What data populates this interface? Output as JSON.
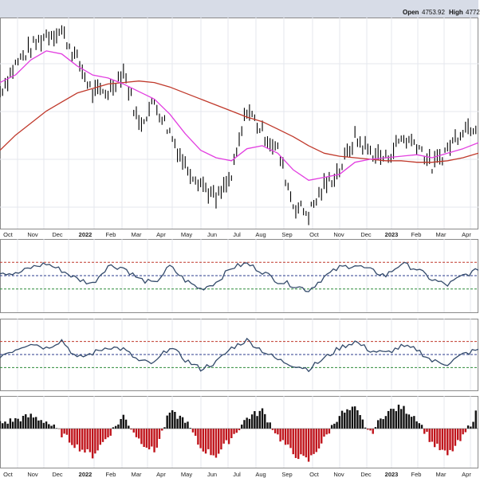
{
  "ohlc": {
    "open_label": "Open",
    "open_value": "4753.92",
    "high_label": "High",
    "high_value": "4772"
  },
  "colors": {
    "price_bars": "#000000",
    "sma_50": "#e23fe0",
    "sma_200": "#c0392b",
    "indicator_line": "#334a6b",
    "overbought_line": "#c0392b",
    "midline": "#2c3e8f",
    "oversold_line": "#2e8b3a",
    "hist_positive": "#111111",
    "hist_negative": "#c0141b",
    "panel_bg": "#ffffff",
    "header_bg": "#d7dce7"
  },
  "chart_data": [
    {
      "type": "line",
      "title": "",
      "x_tick_labels": [
        "Oct",
        "Nov",
        "Dec",
        "2022",
        "Feb",
        "Mar",
        "Apr",
        "May",
        "Jun",
        "Jul",
        "Aug",
        "Sep",
        "Oct",
        "Nov",
        "Dec",
        "2023",
        "Feb",
        "Mar",
        "Apr"
      ],
      "grid": true,
      "series": [
        {
          "values": [
            4390,
            4570,
            4680,
            4770,
            4790,
            4600,
            4380,
            4390,
            4530,
            4170,
            4320,
            4120,
            3900,
            3790,
            3670,
            3820,
            4280,
            4120,
            4000,
            3640,
            3580,
            3760,
            3870,
            4080,
            3990,
            3940,
            4080,
            4050,
            3890,
            4010,
            4150,
            4170
          ]
        },
        {
          "values": [
            4450,
            4500,
            4600,
            4660,
            4640,
            4560,
            4500,
            4480,
            4440,
            4390,
            4340,
            4240,
            4110,
            4000,
            3950,
            3930,
            4010,
            4030,
            3980,
            3870,
            3800,
            3820,
            3840,
            3920,
            3940,
            3950,
            3960,
            3970,
            3950,
            3980,
            4010,
            4050
          ]
        },
        {
          "values": [
            4000,
            4100,
            4180,
            4260,
            4320,
            4380,
            4410,
            4440,
            4450,
            4460,
            4450,
            4420,
            4380,
            4340,
            4300,
            4260,
            4220,
            4190,
            4140,
            4090,
            4030,
            3980,
            3960,
            3950,
            3940,
            3930,
            3930,
            3920,
            3920,
            3930,
            3950,
            3980
          ]
        }
      ]
    },
    {
      "type": "line",
      "title": "",
      "grid": true,
      "reference_lines": [
        "overbought",
        "midline",
        "oversold"
      ],
      "series": [
        {
          "values": [
            56,
            52,
            62,
            68,
            58,
            45,
            38,
            65,
            62,
            45,
            38,
            64,
            43,
            30,
            40,
            62,
            68,
            56,
            42,
            36,
            28,
            48,
            62,
            66,
            58,
            50,
            68,
            60,
            44,
            36,
            50,
            58
          ]
        }
      ]
    },
    {
      "type": "line",
      "title": "",
      "grid": true,
      "reference_lines": [
        "overbought",
        "midline",
        "oversold"
      ],
      "series": [
        {
          "values": [
            48,
            58,
            68,
            60,
            72,
            44,
            52,
            62,
            58,
            40,
            36,
            62,
            42,
            28,
            38,
            60,
            72,
            56,
            42,
            34,
            28,
            44,
            60,
            70,
            56,
            52,
            62,
            58,
            40,
            36,
            50,
            58
          ]
        }
      ]
    },
    {
      "type": "bar",
      "title": "",
      "grid": true,
      "series": [
        {
          "values": [
            6,
            10,
            14,
            8,
            -6,
            -20,
            -30,
            -8,
            14,
            -12,
            -26,
            18,
            10,
            -22,
            -30,
            -10,
            12,
            20,
            -8,
            -28,
            -36,
            -12,
            16,
            22,
            -6,
            18,
            24,
            12,
            -16,
            -30,
            -10,
            22
          ]
        }
      ]
    }
  ]
}
